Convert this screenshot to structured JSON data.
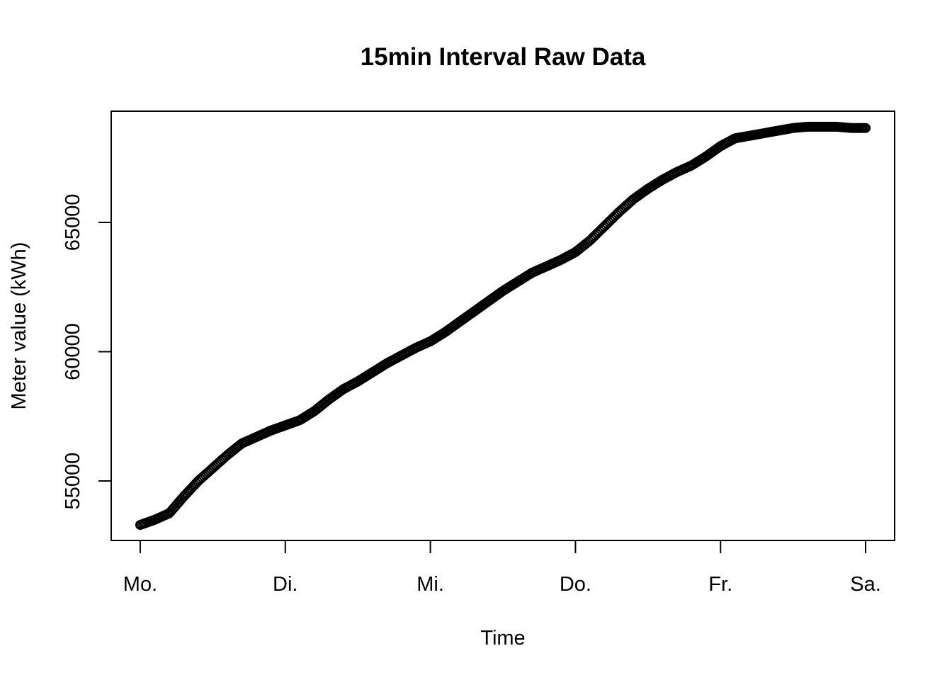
{
  "chart_data": {
    "type": "scatter",
    "title": "15min Interval Raw Data",
    "xlabel": "Time",
    "ylabel": "Meter value (kWh)",
    "x_ticks": [
      "Mo.",
      "Di.",
      "Mi.",
      "Do.",
      "Fr.",
      "Sa."
    ],
    "y_ticks": [
      55000,
      60000,
      65000
    ],
    "xlim": [
      -0.2,
      5.2
    ],
    "ylim": [
      52700,
      69300
    ],
    "point_style": "open-circle",
    "point_color": "#000000",
    "series": [
      {
        "interval": "15min",
        "x_start": 0,
        "x_end": 5,
        "points_per_day": 96,
        "x": [
          0,
          0.1,
          0.2,
          0.3,
          0.4,
          0.5,
          0.6,
          0.7,
          0.8,
          0.9,
          1.0,
          1.1,
          1.2,
          1.3,
          1.4,
          1.5,
          1.6,
          1.7,
          1.8,
          1.9,
          2.0,
          2.1,
          2.2,
          2.3,
          2.4,
          2.5,
          2.6,
          2.7,
          2.8,
          2.9,
          3.0,
          3.1,
          3.2,
          3.3,
          3.4,
          3.5,
          3.6,
          3.7,
          3.8,
          3.9,
          4.0,
          4.1,
          4.2,
          4.3,
          4.4,
          4.5,
          4.6,
          4.7,
          4.8,
          4.9,
          5.0
        ],
        "y": [
          53300,
          53500,
          53750,
          54400,
          55000,
          55500,
          56000,
          56450,
          56700,
          56950,
          57150,
          57350,
          57700,
          58150,
          58550,
          58850,
          59200,
          59550,
          59850,
          60150,
          60400,
          60750,
          61150,
          61550,
          61950,
          62350,
          62700,
          63050,
          63300,
          63550,
          63850,
          64300,
          64850,
          65400,
          65900,
          66300,
          66650,
          66950,
          67200,
          67550,
          67950,
          68250,
          68350,
          68450,
          68550,
          68650,
          68700,
          68700,
          68700,
          68650,
          68650
        ]
      }
    ]
  }
}
